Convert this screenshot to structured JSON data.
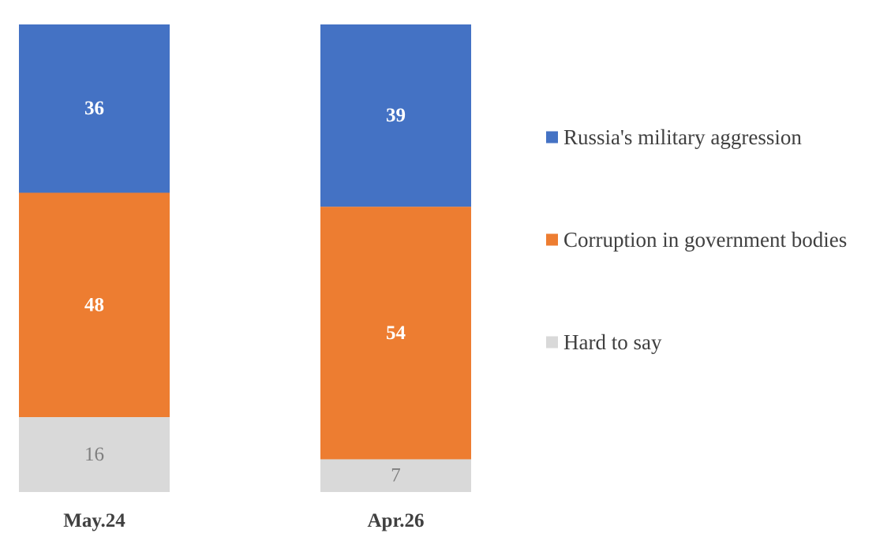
{
  "chart_data": {
    "type": "bar",
    "stacked": true,
    "categories": [
      "May.24",
      "Apr.26"
    ],
    "series": [
      {
        "name": "Russia's military aggression",
        "values": [
          36,
          39
        ],
        "color": "#4472c4"
      },
      {
        "name": "Corruption in government bodies",
        "values": [
          48,
          54
        ],
        "color": "#ed7d31"
      },
      {
        "name": "Hard to say",
        "values": [
          16,
          7
        ],
        "color": "#d9d9d9"
      }
    ],
    "ylim": [
      0,
      100
    ],
    "grid": false,
    "legend": "right"
  }
}
